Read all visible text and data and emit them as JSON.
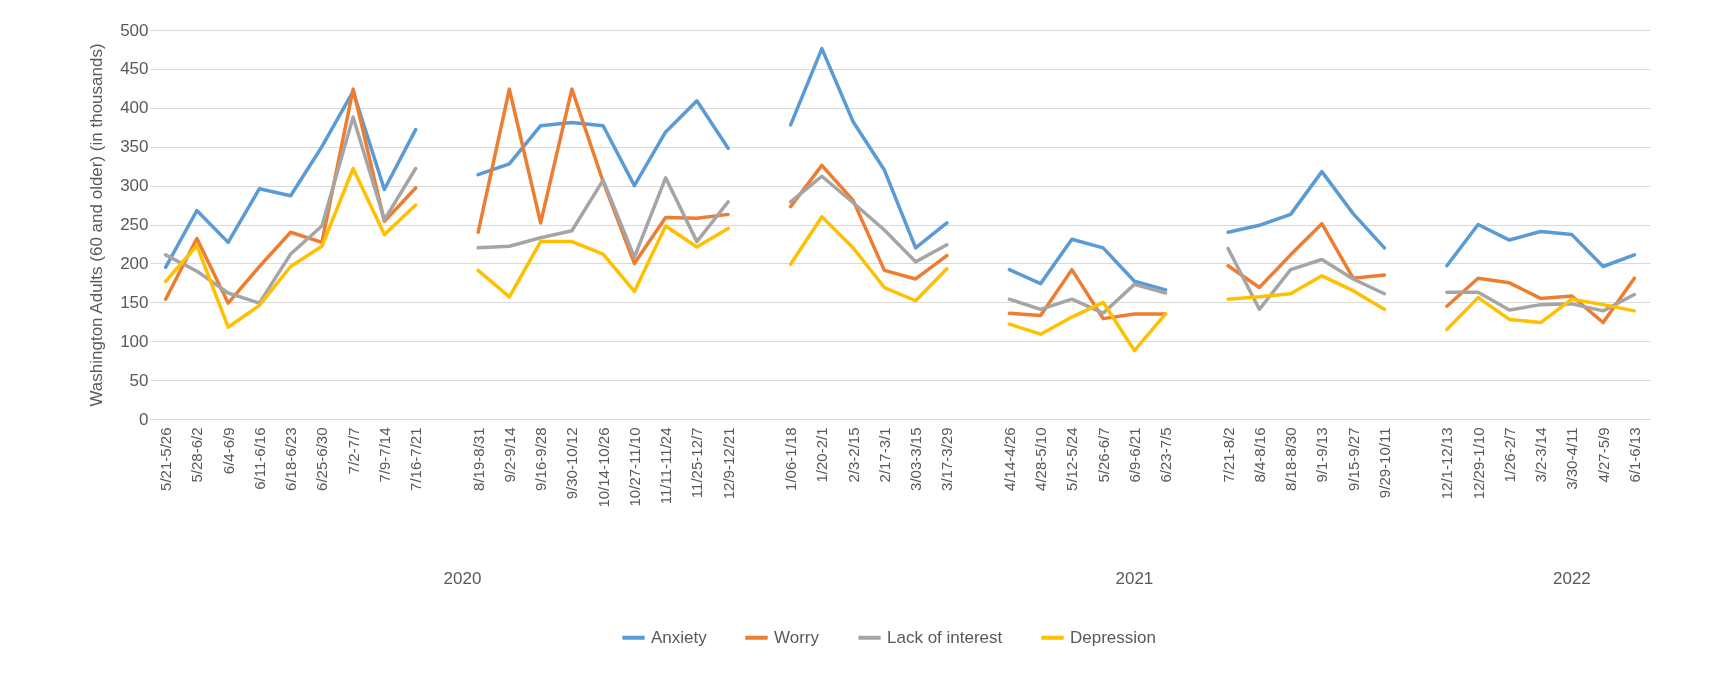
{
  "chart_data": {
    "type": "line",
    "ylabel": "Washington Adults (60 and older) (in thousands)",
    "categories": [
      "5/21-5/26",
      "5/28-6/2",
      "6/4-6/9",
      "6/11-6/16",
      "6/18-6/23",
      "6/25-6/30",
      "7/2-7/7",
      "7/9-7/14",
      "7/16-7/21",
      null,
      "8/19-8/31",
      "9/2-9/14",
      "9/16-9/28",
      "9/30-10/12",
      "10/14-10/26",
      "10/27-11/10",
      "11/11-11/24",
      "11/25-12/7",
      "12/9-12/21",
      null,
      "1/06-1/18",
      "1/20-2/1",
      "2/3-2/15",
      "2/17-3/1",
      "3/03-3/15",
      "3/17-3/29",
      null,
      "4/14-4/26",
      "4/28-5/10",
      "5/12-5/24",
      "5/26-6/7",
      "6/9-6/21",
      "6/23-7/5",
      null,
      "7/21-8/2",
      "8/4-8/16",
      "8/18-8/30",
      "9/1-9/13",
      "9/15-9/27",
      "9/29-10/11",
      null,
      "12/1-12/13",
      "12/29-1/10",
      "1/26-2/7",
      "3/2-3/14",
      "3/30-4/11",
      "4/27-5/9",
      "6/1-6/13"
    ],
    "series": [
      {
        "name": "Anxiety",
        "color": "#5b9bd5",
        "values": [
          195,
          268,
          227,
          296,
          287,
          350,
          421,
          295,
          372,
          null,
          314,
          328,
          377,
          381,
          377,
          300,
          369,
          409,
          348,
          null,
          378,
          476,
          382,
          320,
          220,
          252,
          null,
          192,
          174,
          231,
          220,
          177,
          166,
          null,
          240,
          249,
          263,
          318,
          264,
          220,
          null,
          197,
          250,
          230,
          241,
          237,
          196,
          211
        ]
      },
      {
        "name": "Worry",
        "color": "#ed7d31",
        "values": [
          154,
          232,
          149,
          196,
          240,
          227,
          424,
          254,
          297,
          null,
          240,
          424,
          252,
          424,
          305,
          200,
          259,
          258,
          263,
          null,
          273,
          326,
          281,
          191,
          180,
          210,
          null,
          136,
          133,
          192,
          129,
          135,
          135,
          null,
          197,
          169,
          211,
          251,
          181,
          185,
          null,
          145,
          181,
          175,
          155,
          158,
          124,
          181
        ]
      },
      {
        "name": "Lack of interest",
        "color": "#a5a5a5",
        "values": [
          211,
          190,
          162,
          149,
          212,
          248,
          388,
          256,
          322,
          null,
          220,
          222,
          233,
          242,
          307,
          208,
          310,
          228,
          279,
          null,
          279,
          312,
          278,
          243,
          202,
          224,
          null,
          154,
          141,
          154,
          136,
          173,
          162,
          null,
          219,
          141,
          192,
          205,
          180,
          161,
          null,
          163,
          163,
          140,
          147,
          148,
          139,
          160
        ]
      },
      {
        "name": "Depression",
        "color": "#ffc000",
        "values": [
          177,
          223,
          118,
          146,
          196,
          222,
          322,
          237,
          275,
          null,
          191,
          157,
          228,
          228,
          212,
          164,
          248,
          221,
          245,
          null,
          199,
          260,
          220,
          169,
          152,
          193,
          null,
          122,
          109,
          131,
          150,
          88,
          135,
          null,
          154,
          157,
          161,
          184,
          165,
          141,
          null,
          115,
          156,
          128,
          124,
          154,
          147,
          139
        ]
      }
    ],
    "ylim": [
      0,
      500
    ],
    "yticks": [
      0,
      50,
      100,
      150,
      200,
      250,
      300,
      350,
      400,
      450,
      500
    ],
    "grid": "y",
    "legend": "bottom",
    "annotations": [
      "2020",
      "2021",
      "2022"
    ]
  }
}
